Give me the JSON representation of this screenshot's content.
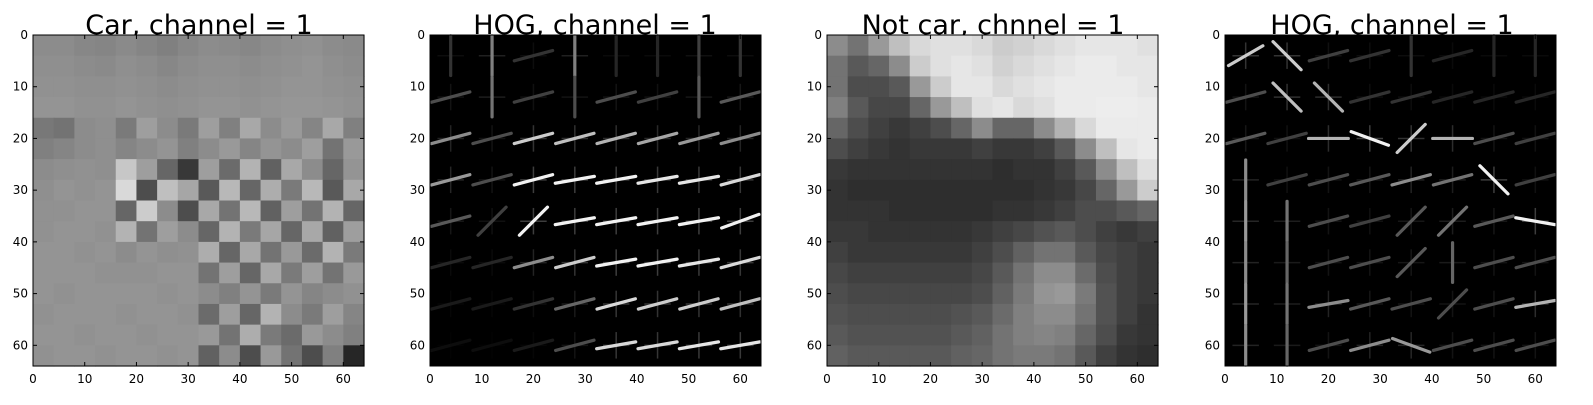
{
  "chart_data": [
    {
      "type": "heatmap",
      "title": "Car, channel = 1",
      "colormap": "gray",
      "xlim": [
        0,
        64
      ],
      "ylim": [
        64,
        0
      ],
      "xticks": [
        0,
        10,
        20,
        30,
        40,
        50,
        60
      ],
      "yticks": [
        0,
        10,
        20,
        30,
        40,
        50,
        60
      ],
      "grid_size": 16,
      "values": [
        [
          0.55,
          0.55,
          0.53,
          0.52,
          0.54,
          0.52,
          0.5,
          0.53,
          0.55,
          0.54,
          0.53,
          0.55,
          0.56,
          0.57,
          0.55,
          0.54
        ],
        [
          0.56,
          0.56,
          0.55,
          0.54,
          0.56,
          0.55,
          0.53,
          0.55,
          0.56,
          0.56,
          0.55,
          0.56,
          0.57,
          0.58,
          0.56,
          0.55
        ],
        [
          0.57,
          0.57,
          0.56,
          0.56,
          0.57,
          0.56,
          0.55,
          0.56,
          0.57,
          0.57,
          0.56,
          0.57,
          0.58,
          0.58,
          0.57,
          0.56
        ],
        [
          0.58,
          0.58,
          0.57,
          0.57,
          0.58,
          0.57,
          0.56,
          0.57,
          0.58,
          0.58,
          0.57,
          0.58,
          0.59,
          0.59,
          0.58,
          0.57
        ],
        [
          0.47,
          0.45,
          0.55,
          0.56,
          0.48,
          0.62,
          0.55,
          0.48,
          0.62,
          0.5,
          0.66,
          0.55,
          0.6,
          0.52,
          0.66,
          0.5
        ],
        [
          0.5,
          0.52,
          0.55,
          0.56,
          0.52,
          0.55,
          0.58,
          0.5,
          0.55,
          0.6,
          0.52,
          0.58,
          0.55,
          0.62,
          0.45,
          0.6
        ],
        [
          0.55,
          0.56,
          0.57,
          0.56,
          0.78,
          0.62,
          0.4,
          0.22,
          0.62,
          0.42,
          0.7,
          0.38,
          0.66,
          0.55,
          0.4,
          0.58
        ],
        [
          0.56,
          0.58,
          0.57,
          0.58,
          0.85,
          0.3,
          0.75,
          0.65,
          0.35,
          0.72,
          0.4,
          0.68,
          0.48,
          0.72,
          0.35,
          0.66
        ],
        [
          0.57,
          0.57,
          0.58,
          0.58,
          0.4,
          0.8,
          0.55,
          0.3,
          0.66,
          0.45,
          0.72,
          0.38,
          0.62,
          0.45,
          0.7,
          0.4
        ],
        [
          0.57,
          0.58,
          0.58,
          0.57,
          0.7,
          0.45,
          0.62,
          0.55,
          0.4,
          0.7,
          0.48,
          0.65,
          0.4,
          0.66,
          0.38,
          0.62
        ],
        [
          0.58,
          0.58,
          0.57,
          0.58,
          0.55,
          0.58,
          0.56,
          0.57,
          0.68,
          0.4,
          0.66,
          0.45,
          0.6,
          0.42,
          0.7,
          0.48
        ],
        [
          0.58,
          0.58,
          0.58,
          0.57,
          0.57,
          0.57,
          0.58,
          0.58,
          0.45,
          0.62,
          0.4,
          0.66,
          0.48,
          0.62,
          0.45,
          0.6
        ],
        [
          0.58,
          0.57,
          0.58,
          0.58,
          0.58,
          0.58,
          0.57,
          0.58,
          0.55,
          0.5,
          0.58,
          0.48,
          0.58,
          0.52,
          0.55,
          0.57
        ],
        [
          0.57,
          0.58,
          0.58,
          0.58,
          0.57,
          0.58,
          0.58,
          0.57,
          0.42,
          0.62,
          0.4,
          0.7,
          0.55,
          0.48,
          0.62,
          0.52
        ],
        [
          0.58,
          0.58,
          0.57,
          0.58,
          0.58,
          0.57,
          0.58,
          0.58,
          0.6,
          0.45,
          0.68,
          0.48,
          0.42,
          0.6,
          0.55,
          0.5
        ],
        [
          0.57,
          0.58,
          0.58,
          0.57,
          0.58,
          0.58,
          0.57,
          0.58,
          0.38,
          0.55,
          0.3,
          0.6,
          0.45,
          0.3,
          0.5,
          0.15
        ]
      ]
    },
    {
      "type": "heatmap",
      "title": "HOG, channel = 1",
      "colormap": "gray",
      "xlim": [
        0,
        64
      ],
      "ylim": [
        64,
        0
      ],
      "xticks": [
        0,
        10,
        20,
        30,
        40,
        50,
        60
      ],
      "yticks": [
        0,
        10,
        20,
        30,
        40,
        50,
        60
      ],
      "cell_grid": 8,
      "cell_angle_deg": [
        [
          90,
          90,
          15,
          90,
          90,
          90,
          90,
          90
        ],
        [
          15,
          90,
          15,
          90,
          15,
          15,
          90,
          15
        ],
        [
          15,
          15,
          15,
          15,
          15,
          15,
          15,
          15
        ],
        [
          15,
          15,
          15,
          10,
          10,
          10,
          10,
          15
        ],
        [
          15,
          45,
          45,
          10,
          10,
          10,
          10,
          20
        ],
        [
          15,
          15,
          15,
          15,
          10,
          10,
          10,
          15
        ],
        [
          15,
          15,
          15,
          15,
          15,
          15,
          15,
          15
        ],
        [
          15,
          15,
          15,
          15,
          10,
          10,
          10,
          10
        ]
      ],
      "cell_strength": [
        [
          0.2,
          0.5,
          0.2,
          0.5,
          0.15,
          0.15,
          0.25,
          0.2
        ],
        [
          0.3,
          0.45,
          0.25,
          0.3,
          0.3,
          0.25,
          0.35,
          0.35
        ],
        [
          0.55,
          0.3,
          0.8,
          0.75,
          0.7,
          0.65,
          0.6,
          0.55
        ],
        [
          0.6,
          0.3,
          0.95,
          0.95,
          0.95,
          0.9,
          0.9,
          0.85
        ],
        [
          0.35,
          0.25,
          0.95,
          0.95,
          0.95,
          0.95,
          0.95,
          0.95
        ],
        [
          0.15,
          0.15,
          0.55,
          0.8,
          0.95,
          0.95,
          0.9,
          0.85
        ],
        [
          0.1,
          0.1,
          0.2,
          0.4,
          0.85,
          0.8,
          0.8,
          0.75
        ],
        [
          0.05,
          0.05,
          0.1,
          0.3,
          0.85,
          0.85,
          0.9,
          0.9
        ]
      ]
    },
    {
      "type": "heatmap",
      "title": "Not car, chnnel = 1",
      "colormap": "gray",
      "xlim": [
        0,
        64
      ],
      "ylim": [
        64,
        0
      ],
      "xticks": [
        0,
        10,
        20,
        30,
        40,
        50,
        60
      ],
      "yticks": [
        0,
        10,
        20,
        30,
        40,
        50,
        60
      ],
      "grid_size": 16,
      "values": [
        [
          0.55,
          0.45,
          0.6,
          0.75,
          0.85,
          0.88,
          0.88,
          0.85,
          0.8,
          0.82,
          0.85,
          0.88,
          0.9,
          0.9,
          0.9,
          0.88
        ],
        [
          0.45,
          0.35,
          0.4,
          0.55,
          0.8,
          0.88,
          0.9,
          0.88,
          0.82,
          0.85,
          0.88,
          0.9,
          0.92,
          0.92,
          0.9,
          0.9
        ],
        [
          0.45,
          0.3,
          0.3,
          0.35,
          0.6,
          0.8,
          0.9,
          0.9,
          0.85,
          0.88,
          0.9,
          0.92,
          0.92,
          0.92,
          0.92,
          0.9
        ],
        [
          0.5,
          0.35,
          0.28,
          0.28,
          0.4,
          0.6,
          0.75,
          0.88,
          0.9,
          0.85,
          0.88,
          0.92,
          0.92,
          0.93,
          0.93,
          0.92
        ],
        [
          0.4,
          0.3,
          0.25,
          0.22,
          0.25,
          0.3,
          0.4,
          0.55,
          0.4,
          0.4,
          0.55,
          0.7,
          0.85,
          0.92,
          0.92,
          0.92
        ],
        [
          0.3,
          0.25,
          0.22,
          0.2,
          0.22,
          0.22,
          0.22,
          0.25,
          0.22,
          0.22,
          0.25,
          0.35,
          0.55,
          0.75,
          0.9,
          0.92
        ],
        [
          0.22,
          0.2,
          0.2,
          0.2,
          0.2,
          0.2,
          0.2,
          0.2,
          0.18,
          0.2,
          0.2,
          0.25,
          0.35,
          0.55,
          0.75,
          0.88
        ],
        [
          0.2,
          0.18,
          0.18,
          0.18,
          0.18,
          0.18,
          0.18,
          0.18,
          0.18,
          0.18,
          0.2,
          0.22,
          0.28,
          0.4,
          0.6,
          0.8
        ],
        [
          0.2,
          0.2,
          0.2,
          0.18,
          0.18,
          0.18,
          0.18,
          0.18,
          0.2,
          0.2,
          0.22,
          0.25,
          0.3,
          0.3,
          0.35,
          0.4
        ],
        [
          0.22,
          0.22,
          0.2,
          0.2,
          0.2,
          0.2,
          0.2,
          0.22,
          0.25,
          0.28,
          0.32,
          0.35,
          0.3,
          0.25,
          0.22,
          0.25
        ],
        [
          0.25,
          0.22,
          0.22,
          0.22,
          0.22,
          0.22,
          0.22,
          0.25,
          0.3,
          0.38,
          0.45,
          0.45,
          0.35,
          0.28,
          0.25,
          0.22
        ],
        [
          0.28,
          0.25,
          0.25,
          0.25,
          0.25,
          0.25,
          0.25,
          0.28,
          0.35,
          0.45,
          0.55,
          0.55,
          0.42,
          0.3,
          0.25,
          0.22
        ],
        [
          0.3,
          0.28,
          0.28,
          0.28,
          0.28,
          0.28,
          0.28,
          0.3,
          0.38,
          0.48,
          0.58,
          0.6,
          0.48,
          0.32,
          0.25,
          0.22
        ],
        [
          0.32,
          0.3,
          0.3,
          0.3,
          0.3,
          0.3,
          0.32,
          0.35,
          0.42,
          0.5,
          0.55,
          0.55,
          0.45,
          0.32,
          0.25,
          0.2
        ],
        [
          0.35,
          0.32,
          0.32,
          0.32,
          0.32,
          0.32,
          0.35,
          0.38,
          0.45,
          0.5,
          0.52,
          0.5,
          0.4,
          0.3,
          0.22,
          0.2
        ],
        [
          0.38,
          0.35,
          0.35,
          0.35,
          0.35,
          0.35,
          0.38,
          0.4,
          0.45,
          0.48,
          0.48,
          0.45,
          0.35,
          0.25,
          0.2,
          0.18
        ]
      ]
    },
    {
      "type": "heatmap",
      "title": "HOG, channel = 1",
      "colormap": "gray",
      "xlim": [
        0,
        64
      ],
      "ylim": [
        64,
        0
      ],
      "xticks": [
        0,
        10,
        20,
        30,
        40,
        50,
        60
      ],
      "yticks": [
        0,
        10,
        20,
        30,
        40,
        50,
        60
      ],
      "cell_grid": 8,
      "cell_angle_deg": [
        [
          30,
          135,
          15,
          15,
          90,
          15,
          90,
          90
        ],
        [
          15,
          135,
          135,
          15,
          15,
          15,
          15,
          15
        ],
        [
          15,
          15,
          0,
          160,
          45,
          0,
          15,
          15
        ],
        [
          90,
          15,
          15,
          15,
          15,
          15,
          135,
          15
        ],
        [
          90,
          90,
          15,
          15,
          45,
          45,
          15,
          170
        ],
        [
          90,
          90,
          15,
          15,
          45,
          90,
          15,
          15
        ],
        [
          90,
          90,
          10,
          15,
          15,
          45,
          15,
          10
        ],
        [
          90,
          90,
          15,
          15,
          160,
          15,
          15,
          15
        ]
      ],
      "cell_strength": [
        [
          0.8,
          0.8,
          0.25,
          0.2,
          0.2,
          0.15,
          0.15,
          0.15
        ],
        [
          0.3,
          0.75,
          0.7,
          0.2,
          0.2,
          0.15,
          0.15,
          0.15
        ],
        [
          0.35,
          0.25,
          0.7,
          0.95,
          0.8,
          0.7,
          0.3,
          0.25
        ],
        [
          0.55,
          0.25,
          0.3,
          0.35,
          0.55,
          0.45,
          0.95,
          0.25
        ],
        [
          0.6,
          0.45,
          0.3,
          0.25,
          0.35,
          0.45,
          0.35,
          0.95
        ],
        [
          0.55,
          0.4,
          0.3,
          0.3,
          0.35,
          0.4,
          0.3,
          0.3
        ],
        [
          0.6,
          0.45,
          0.55,
          0.35,
          0.3,
          0.3,
          0.3,
          0.7
        ],
        [
          0.55,
          0.4,
          0.3,
          0.55,
          0.6,
          0.3,
          0.3,
          0.3
        ]
      ]
    }
  ]
}
